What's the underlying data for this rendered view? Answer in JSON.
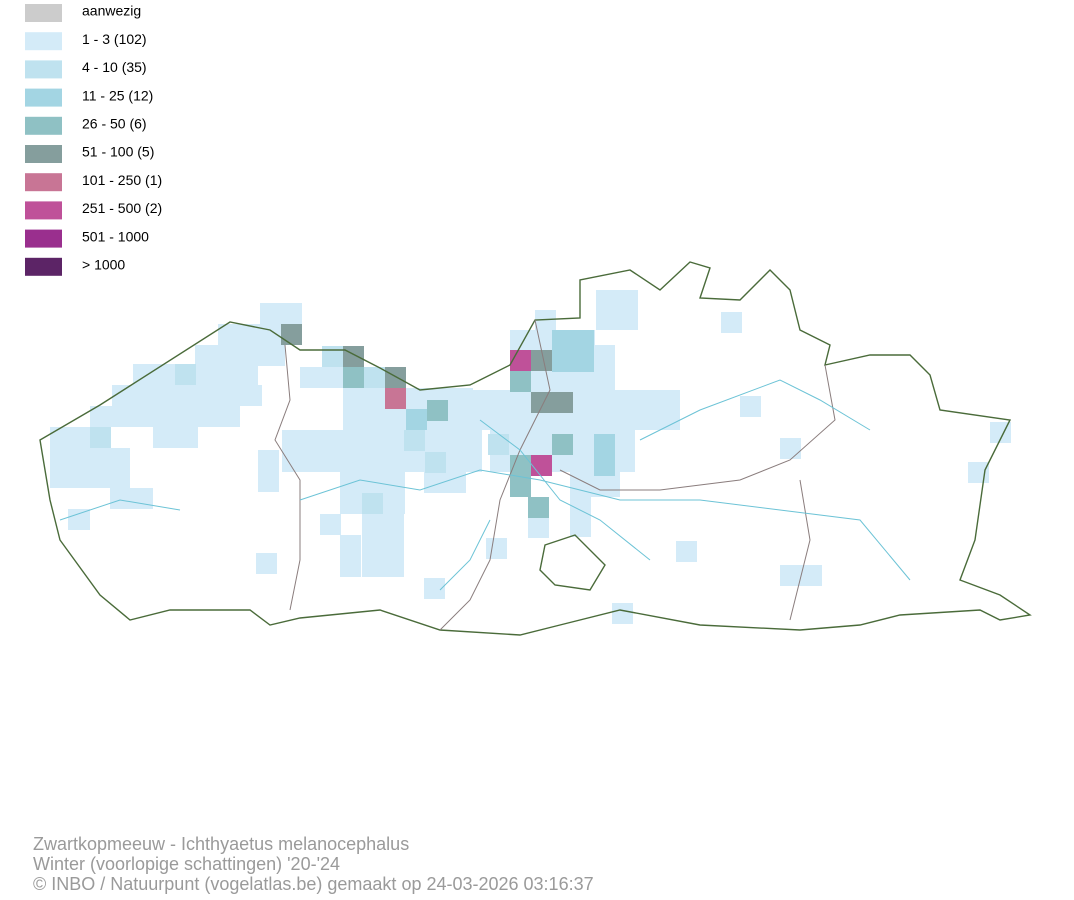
{
  "legend": {
    "items": [
      {
        "label": "aanwezig",
        "color": "#cccccc"
      },
      {
        "label": "1 - 3 (102)",
        "color": "#d4ebf8"
      },
      {
        "label": "4 - 10 (35)",
        "color": "#bfe2ef"
      },
      {
        "label": "11 - 25 (12)",
        "color": "#a3d5e3"
      },
      {
        "label": "26 - 50 (6)",
        "color": "#8fc1c4"
      },
      {
        "label": "51 - 100 (5)",
        "color": "#859e9d"
      },
      {
        "label": "101 - 250 (1)",
        "color": "#c87595"
      },
      {
        "label": "251 - 500 (2)",
        "color": "#bf5199"
      },
      {
        "label": "501 - 1000",
        "color": "#9a2f8e"
      },
      {
        "label": "> 1000",
        "color": "#5c2466"
      }
    ]
  },
  "footer": {
    "lines": [
      "Zwartkopmeeuw - Ichthyaetus melanocephalus",
      "Winter (voorlopige schattingen) '20-'24",
      "© INBO / Natuurpunt (vogelatlas.be) gemaakt op 24-03-2026 03:16:37"
    ]
  }
}
